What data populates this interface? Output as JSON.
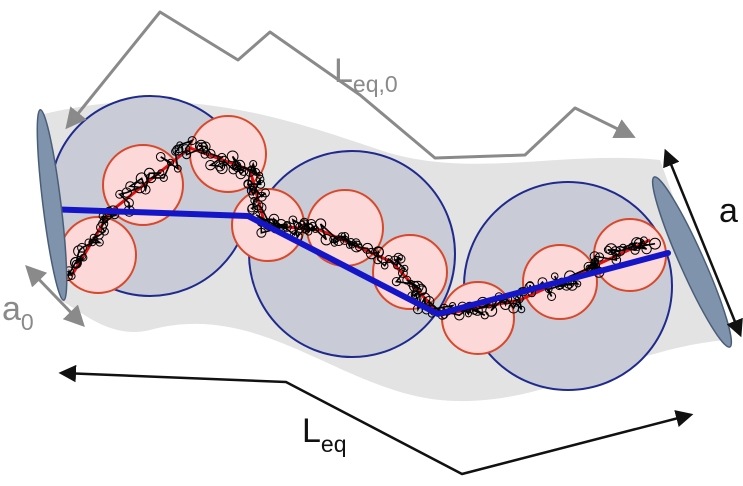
{
  "labels": {
    "contour_length": {
      "main": "L",
      "sub": "eq,0"
    },
    "tube_diameter": "a",
    "monomer_size": {
      "main": "a",
      "sub": "0"
    },
    "equivalent_length": {
      "main": "L",
      "sub": "eq"
    }
  },
  "colors": {
    "tube": "#e3e3e3",
    "blob_fill": "#c9ccd6",
    "blob_stroke": "#1f2a8c",
    "subblob_fill": "#fcd8d8",
    "subblob_stroke": "#d9482b",
    "primitive_path": "#1515c8",
    "subchain_path": "#e01010",
    "chain": "#000000",
    "end_disc_fill": "#7f93ad",
    "end_disc_stroke": "#4a5d78",
    "grey_label": "#8a8a8a",
    "dark_label": "#111111"
  }
}
